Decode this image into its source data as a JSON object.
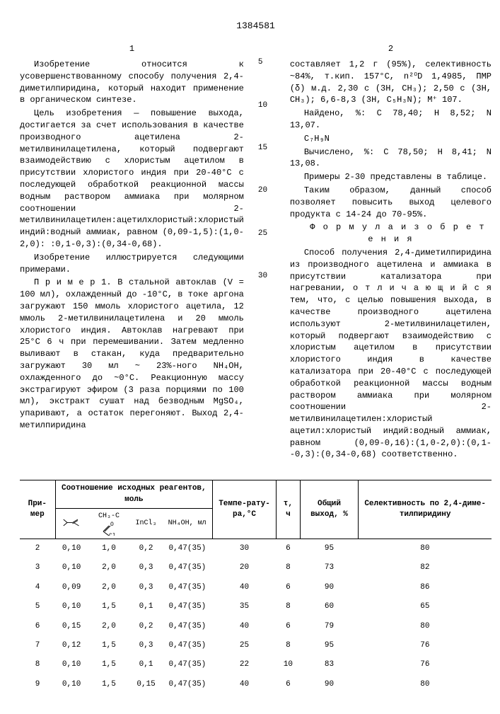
{
  "patent_number": "1384581",
  "col1_num": "1",
  "col2_num": "2",
  "line_markers": [
    "5",
    "10",
    "15",
    "20",
    "25",
    "30"
  ],
  "col1": {
    "p1": "Изобретение относится к усовершенствованному способу получения 2,4-диметилпиридина, который находит применение в органическом синтезе.",
    "p2": "Цель изобретения — повышение выхода, достигается за счет использования в качестве производного ацетилена 2-метилвинилацетилена, который подвергают взаимодействию с хлористым ацетилом в присутствии хлористого индия при 20-40°С с последующей обработкой реакционной массы водным раствором аммиака при молярном соотношении 2-метилвинилацетилен:ацетилхлористый:хлористый индий:водный аммиак, равном (0,09-1,5):(1,0-2,0): :0,1-0,3):(0,34-0,68).",
    "p3": "Изобретение иллюстрируется следующими примерами.",
    "p4": "П р и м е р  1. В стальной автоклав (V = 100 мл), охлажденный до -10°С, в токе аргона загружают 150 ммоль хлористого ацетила, 12 ммоль 2-метилвинилацетилена и 20 ммоль хлористого индия. Автоклав нагревают при 25°С 6 ч при перемешивании. Затем медленно выливают в стакан, куда предварительно загружают 30 мл ~ 23%-ного NH₄OH, охлажденного до ~0°С. Реакционную массу экстрагируют эфиром (3 раза порциями по 100 мл), экстракт сушат над безводным MgSO₄, упаривают, а остаток перегоняют. Выход 2,4-метилпиридина"
  },
  "col2": {
    "p1": "составляет 1,2 г (95%), селективность ~84%, т.кип. 157°С, n²⁰D 1,4985, ПМР (δ) м.д. 2,30 с (3Н, СН₃); 2,50 с (3Н, СН₃); 6,6-8,3 (3Н, С₅Н₃N); М⁺ 107.",
    "p2": "Найдено, %: С 78,40; Н 8,52; N 13,07.",
    "p3": "C₇H₉N",
    "p4": "Вычислено, %: С 78,50; Н 8,41; N 13,08.",
    "p5": "Примеры 2-30 представлены в таблице.",
    "p6": "Таким образом, данный способ позволяет повысить выход целевого продукта с 14-24 до 70-95%.",
    "formula_label": "Ф о р м у л а  и з о б р е т е н и я",
    "p7": "Способ получения 2,4-диметилпиридина из производного ацетилена и аммиака в присутствии катализатора при нагревании, о т л и ч а ю щ и й с я  тем, что, с целью повышения выхода, в качестве производного ацетилена используют 2-метилвинилацетилен, который подвергают взаимодействию с хлористым ацетилом в присутствии хлористого индия в качестве катализатора при 20-40°С с последующей обработкой реакционной массы водным раствором аммиака при молярном соотношении 2-метилвинилацетилен:хлористый ацетил:хлористый индий:водный аммиак, равном (0,09-0,16):(1,0-2,0):(0,1--0,3):(0,34-0,68) соответственно."
  },
  "table": {
    "headers": {
      "h1": "При-мер",
      "h2": "Соотношение исходных реагентов, моль",
      "h3": "Темпе-рату-ра,°С",
      "h4": "τ, ч",
      "h5": "Общий выход, %",
      "h6": "Селективность по 2,4-диме-тилпиридину",
      "sub2": "CH₃-C",
      "sub2b": "O",
      "sub2c": "Cl",
      "sub3": "InCl₃",
      "sub4": "NH₄OH, мл"
    },
    "rows": [
      [
        "2",
        "0,10",
        "1,0",
        "0,2",
        "0,47(35)",
        "30",
        "6",
        "95",
        "80"
      ],
      [
        "3",
        "0,10",
        "2,0",
        "0,3",
        "0,47(35)",
        "20",
        "8",
        "73",
        "82"
      ],
      [
        "4",
        "0,09",
        "2,0",
        "0,3",
        "0,47(35)",
        "40",
        "6",
        "90",
        "86"
      ],
      [
        "5",
        "0,10",
        "1,5",
        "0,1",
        "0,47(35)",
        "35",
        "8",
        "60",
        "65"
      ],
      [
        "6",
        "0,15",
        "2,0",
        "0,2",
        "0,47(35)",
        "40",
        "6",
        "79",
        "80"
      ],
      [
        "7",
        "0,12",
        "1,5",
        "0,3",
        "0,47(35)",
        "25",
        "8",
        "95",
        "76"
      ],
      [
        "8",
        "0,10",
        "1,5",
        "0,1",
        "0,47(35)",
        "22",
        "10",
        "83",
        "76"
      ],
      [
        "9",
        "0,10",
        "1,5",
        "0,15",
        "0,47(35)",
        "40",
        "6",
        "90",
        "80"
      ]
    ]
  }
}
